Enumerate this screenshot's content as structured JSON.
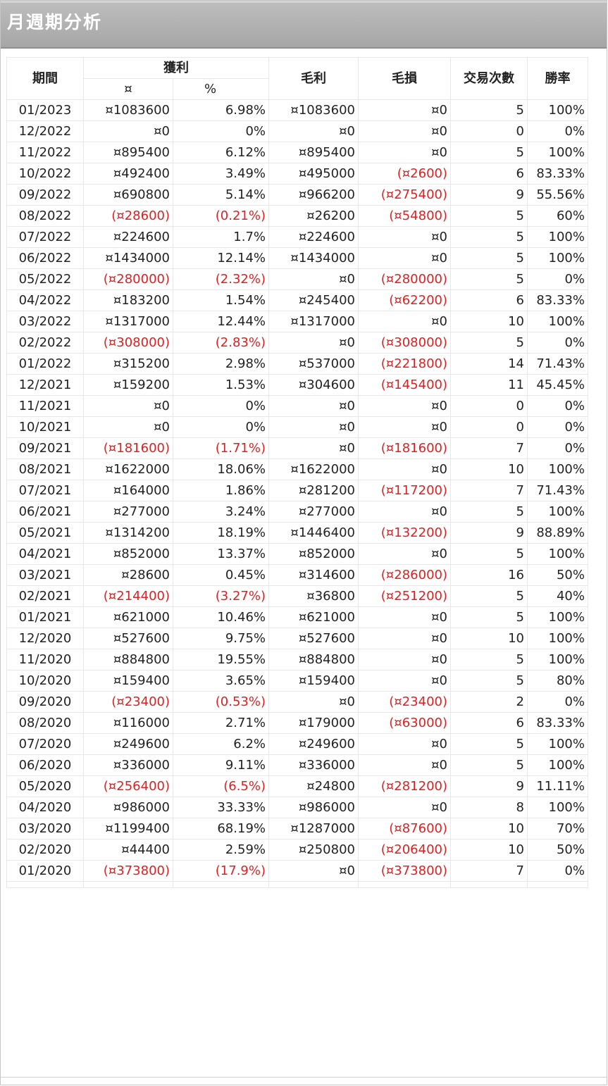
{
  "title": "月週期分析",
  "headers": {
    "period": "期間",
    "profit": "獲利",
    "profit_amount": "¤",
    "profit_pct": "%",
    "gross_profit": "毛利",
    "gross_loss": "毛損",
    "trades": "交易次數",
    "win_rate": "勝率"
  },
  "colors": {
    "negative": "#e02020",
    "title_bar": "#a6a6a6"
  },
  "rows": [
    {
      "period": "01/2023",
      "profit": "¤1083600",
      "pct": "6.98%",
      "gp": "¤1083600",
      "gl": "¤0",
      "trades": "5",
      "win": "100%"
    },
    {
      "period": "12/2022",
      "profit": "¤0",
      "pct": "0%",
      "gp": "¤0",
      "gl": "¤0",
      "trades": "0",
      "win": "0%"
    },
    {
      "period": "11/2022",
      "profit": "¤895400",
      "pct": "6.12%",
      "gp": "¤895400",
      "gl": "¤0",
      "trades": "5",
      "win": "100%"
    },
    {
      "period": "10/2022",
      "profit": "¤492400",
      "pct": "3.49%",
      "gp": "¤495000",
      "gl": "(¤2600)",
      "trades": "6",
      "win": "83.33%"
    },
    {
      "period": "09/2022",
      "profit": "¤690800",
      "pct": "5.14%",
      "gp": "¤966200",
      "gl": "(¤275400)",
      "trades": "9",
      "win": "55.56%"
    },
    {
      "period": "08/2022",
      "profit": "(¤28600)",
      "pct": "(0.21%)",
      "gp": "¤26200",
      "gl": "(¤54800)",
      "trades": "5",
      "win": "60%"
    },
    {
      "period": "07/2022",
      "profit": "¤224600",
      "pct": "1.7%",
      "gp": "¤224600",
      "gl": "¤0",
      "trades": "5",
      "win": "100%"
    },
    {
      "period": "06/2022",
      "profit": "¤1434000",
      "pct": "12.14%",
      "gp": "¤1434000",
      "gl": "¤0",
      "trades": "5",
      "win": "100%"
    },
    {
      "period": "05/2022",
      "profit": "(¤280000)",
      "pct": "(2.32%)",
      "gp": "¤0",
      "gl": "(¤280000)",
      "trades": "5",
      "win": "0%"
    },
    {
      "period": "04/2022",
      "profit": "¤183200",
      "pct": "1.54%",
      "gp": "¤245400",
      "gl": "(¤62200)",
      "trades": "6",
      "win": "83.33%"
    },
    {
      "period": "03/2022",
      "profit": "¤1317000",
      "pct": "12.44%",
      "gp": "¤1317000",
      "gl": "¤0",
      "trades": "10",
      "win": "100%"
    },
    {
      "period": "02/2022",
      "profit": "(¤308000)",
      "pct": "(2.83%)",
      "gp": "¤0",
      "gl": "(¤308000)",
      "trades": "5",
      "win": "0%"
    },
    {
      "period": "01/2022",
      "profit": "¤315200",
      "pct": "2.98%",
      "gp": "¤537000",
      "gl": "(¤221800)",
      "trades": "14",
      "win": "71.43%"
    },
    {
      "period": "12/2021",
      "profit": "¤159200",
      "pct": "1.53%",
      "gp": "¤304600",
      "gl": "(¤145400)",
      "trades": "11",
      "win": "45.45%"
    },
    {
      "period": "11/2021",
      "profit": "¤0",
      "pct": "0%",
      "gp": "¤0",
      "gl": "¤0",
      "trades": "0",
      "win": "0%"
    },
    {
      "period": "10/2021",
      "profit": "¤0",
      "pct": "0%",
      "gp": "¤0",
      "gl": "¤0",
      "trades": "0",
      "win": "0%"
    },
    {
      "period": "09/2021",
      "profit": "(¤181600)",
      "pct": "(1.71%)",
      "gp": "¤0",
      "gl": "(¤181600)",
      "trades": "7",
      "win": "0%"
    },
    {
      "period": "08/2021",
      "profit": "¤1622000",
      "pct": "18.06%",
      "gp": "¤1622000",
      "gl": "¤0",
      "trades": "10",
      "win": "100%"
    },
    {
      "period": "07/2021",
      "profit": "¤164000",
      "pct": "1.86%",
      "gp": "¤281200",
      "gl": "(¤117200)",
      "trades": "7",
      "win": "71.43%"
    },
    {
      "period": "06/2021",
      "profit": "¤277000",
      "pct": "3.24%",
      "gp": "¤277000",
      "gl": "¤0",
      "trades": "5",
      "win": "100%"
    },
    {
      "period": "05/2021",
      "profit": "¤1314200",
      "pct": "18.19%",
      "gp": "¤1446400",
      "gl": "(¤132200)",
      "trades": "9",
      "win": "88.89%"
    },
    {
      "period": "04/2021",
      "profit": "¤852000",
      "pct": "13.37%",
      "gp": "¤852000",
      "gl": "¤0",
      "trades": "5",
      "win": "100%"
    },
    {
      "period": "03/2021",
      "profit": "¤28600",
      "pct": "0.45%",
      "gp": "¤314600",
      "gl": "(¤286000)",
      "trades": "16",
      "win": "50%"
    },
    {
      "period": "02/2021",
      "profit": "(¤214400)",
      "pct": "(3.27%)",
      "gp": "¤36800",
      "gl": "(¤251200)",
      "trades": "5",
      "win": "40%"
    },
    {
      "period": "01/2021",
      "profit": "¤621000",
      "pct": "10.46%",
      "gp": "¤621000",
      "gl": "¤0",
      "trades": "5",
      "win": "100%"
    },
    {
      "period": "12/2020",
      "profit": "¤527600",
      "pct": "9.75%",
      "gp": "¤527600",
      "gl": "¤0",
      "trades": "10",
      "win": "100%"
    },
    {
      "period": "11/2020",
      "profit": "¤884800",
      "pct": "19.55%",
      "gp": "¤884800",
      "gl": "¤0",
      "trades": "5",
      "win": "100%"
    },
    {
      "period": "10/2020",
      "profit": "¤159400",
      "pct": "3.65%",
      "gp": "¤159400",
      "gl": "¤0",
      "trades": "5",
      "win": "80%"
    },
    {
      "period": "09/2020",
      "profit": "(¤23400)",
      "pct": "(0.53%)",
      "gp": "¤0",
      "gl": "(¤23400)",
      "trades": "2",
      "win": "0%"
    },
    {
      "period": "08/2020",
      "profit": "¤116000",
      "pct": "2.71%",
      "gp": "¤179000",
      "gl": "(¤63000)",
      "trades": "6",
      "win": "83.33%"
    },
    {
      "period": "07/2020",
      "profit": "¤249600",
      "pct": "6.2%",
      "gp": "¤249600",
      "gl": "¤0",
      "trades": "5",
      "win": "100%"
    },
    {
      "period": "06/2020",
      "profit": "¤336000",
      "pct": "9.11%",
      "gp": "¤336000",
      "gl": "¤0",
      "trades": "5",
      "win": "100%"
    },
    {
      "period": "05/2020",
      "profit": "(¤256400)",
      "pct": "(6.5%)",
      "gp": "¤24800",
      "gl": "(¤281200)",
      "trades": "9",
      "win": "11.11%"
    },
    {
      "period": "04/2020",
      "profit": "¤986000",
      "pct": "33.33%",
      "gp": "¤986000",
      "gl": "¤0",
      "trades": "8",
      "win": "100%"
    },
    {
      "period": "03/2020",
      "profit": "¤1199400",
      "pct": "68.19%",
      "gp": "¤1287000",
      "gl": "(¤87600)",
      "trades": "10",
      "win": "70%"
    },
    {
      "period": "02/2020",
      "profit": "¤44400",
      "pct": "2.59%",
      "gp": "¤250800",
      "gl": "(¤206400)",
      "trades": "10",
      "win": "50%"
    },
    {
      "period": "01/2020",
      "profit": "(¤373800)",
      "pct": "(17.9%)",
      "gp": "¤0",
      "gl": "(¤373800)",
      "trades": "7",
      "win": "0%"
    }
  ]
}
